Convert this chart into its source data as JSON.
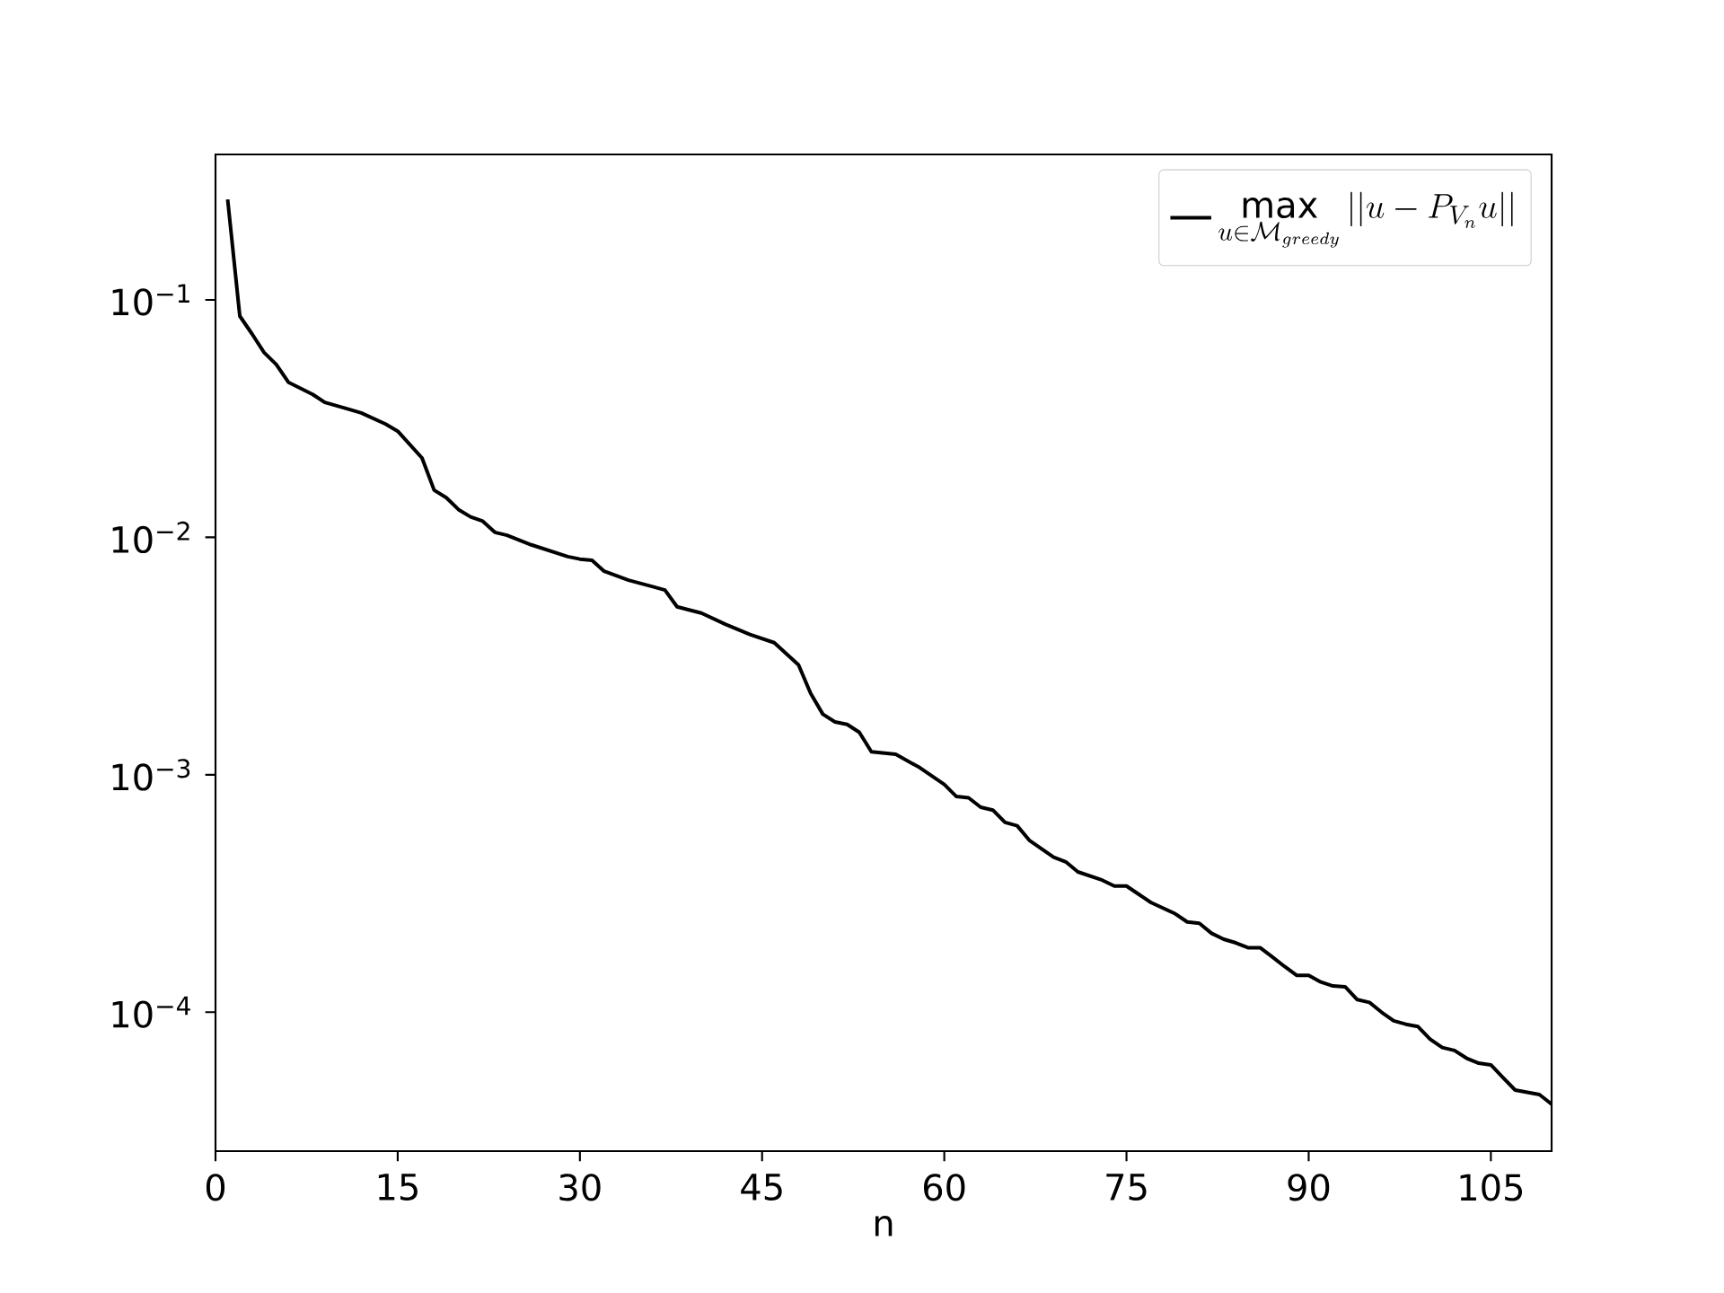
{
  "chart_data": {
    "type": "line",
    "xlabel": "n",
    "log": "y",
    "legend": "top right",
    "marker": "none",
    "line_style": "solid",
    "xlim": [
      0,
      110
    ],
    "xticks": [
      0,
      15,
      30,
      45,
      60,
      75,
      90,
      105
    ],
    "ylim": [
      2.6e-05,
      0.41
    ],
    "yticks": [
      {
        "value": 0.1,
        "label": "10$^{−1}$"
      },
      {
        "value": 0.01,
        "label": "10$^{−2}$"
      },
      {
        "value": 0.001,
        "label": "10$^{−3}$"
      },
      {
        "value": 0.0001,
        "label": "10$^{−4}$"
      }
    ],
    "series": [
      {
        "name": "\\max_{u \\in \\mathcal{M}_{greedy}} ||u - P_{V_n}u||",
        "color": "#000000",
        "x": [
          1,
          2,
          3,
          4,
          5,
          6,
          8,
          9,
          11,
          12,
          14,
          15,
          17,
          18,
          19,
          20,
          21,
          22,
          23,
          24,
          26,
          29,
          30,
          31,
          32,
          34,
          36,
          37,
          38,
          40,
          42,
          44,
          46,
          48,
          49,
          50,
          51,
          52,
          53,
          54,
          56,
          58,
          60,
          61,
          62,
          63,
          64,
          65,
          66,
          67,
          69,
          70,
          71,
          73,
          74,
          75,
          77,
          79,
          80,
          81,
          82,
          83,
          84,
          85,
          86,
          87,
          88,
          89,
          90,
          91,
          92,
          93,
          94,
          95,
          96,
          97,
          98,
          99,
          100,
          101,
          102,
          103,
          104,
          105,
          106,
          107,
          108,
          109,
          110
        ],
        "values": [
          0.265,
          0.0855,
          0.072,
          0.06,
          0.0535,
          0.045,
          0.04,
          0.037,
          0.0346,
          0.0334,
          0.03,
          0.028,
          0.0216,
          0.0158,
          0.0147,
          0.0131,
          0.0122,
          0.0117,
          0.0105,
          0.0102,
          0.0093,
          0.0083,
          0.0081,
          0.008,
          0.0072,
          0.0066,
          0.0062,
          0.006,
          0.0051,
          0.0048,
          0.0043,
          0.0039,
          0.0036,
          0.0029,
          0.0022,
          0.0018,
          0.00167,
          0.00163,
          0.00151,
          0.00125,
          0.00122,
          0.00107,
          0.00091,
          0.00081,
          0.0008,
          0.00073,
          0.00071,
          0.00063,
          0.00061,
          0.00053,
          0.00045,
          0.00043,
          0.00039,
          0.00036,
          0.00034,
          0.00034,
          0.00029,
          0.00026,
          0.00024,
          0.000237,
          0.000215,
          0.000203,
          0.000196,
          0.000187,
          0.000187,
          0.000171,
          0.000156,
          0.000143,
          0.000143,
          0.000134,
          0.000129,
          0.000128,
          0.000113,
          0.00011,
          0.0001,
          9.2e-05,
          8.9e-05,
          8.7e-05,
          7.7e-05,
          7.1e-05,
          6.9e-05,
          6.4e-05,
          6.1e-05,
          6e-05,
          5.3e-05,
          4.7e-05,
          4.6e-05,
          4.5e-05,
          4.1e-05
        ]
      }
    ]
  }
}
